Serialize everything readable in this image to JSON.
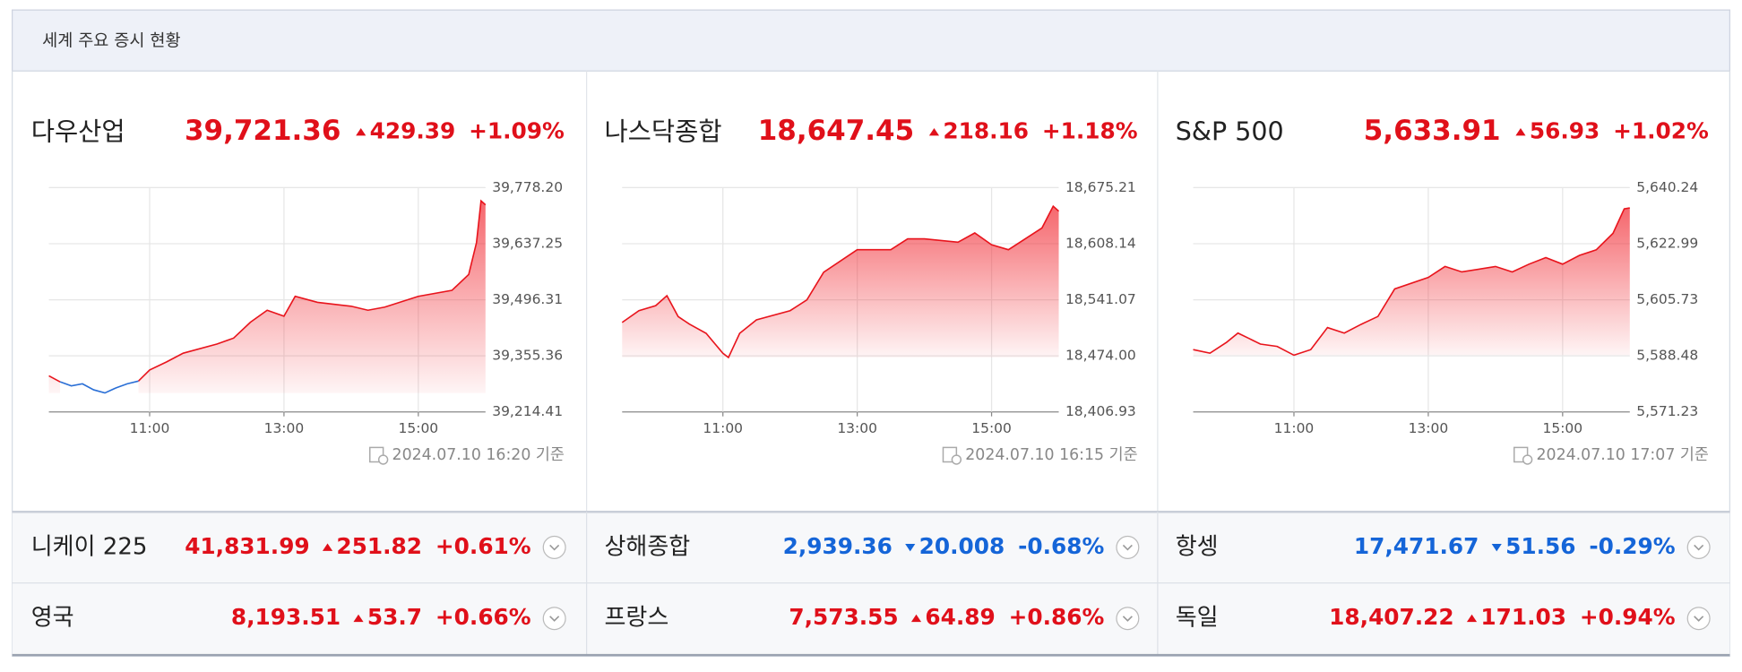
{
  "header": {
    "title": "세계 주요 증시 현황"
  },
  "panels": [
    {
      "name": "다우산업",
      "price": "39,721.36",
      "change": "429.39",
      "change_pct": "+1.09%",
      "direction": "up",
      "timestamp": "2024.07.10 16:20 기준",
      "chart": {
        "type": "line",
        "x": [
          "09:30",
          "09:40",
          "09:50",
          "10:00",
          "10:10",
          "10:20",
          "10:30",
          "10:40",
          "10:50",
          "11:00",
          "11:15",
          "11:30",
          "12:00",
          "12:15",
          "12:30",
          "12:45",
          "13:00",
          "13:10",
          "13:30",
          "14:00",
          "14:15",
          "14:30",
          "15:00",
          "15:30",
          "15:45",
          "15:52",
          "15:56",
          "16:00"
        ],
        "series": [
          {
            "color": "#e8141c",
            "values": [
              39305,
              39290,
              null,
              null,
              null,
              null,
              null,
              null,
              39292,
              39320,
              39340,
              39362,
              39385,
              39400,
              39440,
              39470,
              39455,
              39505,
              39490,
              39480,
              39470,
              39478,
              39505,
              39520,
              39560,
              39640,
              39745,
              39735
            ]
          },
          {
            "color": "#2a6fd6",
            "values": [
              null,
              39290,
              39280,
              39285,
              39270,
              39262,
              39275,
              39285,
              39292,
              null,
              null,
              null,
              null,
              null,
              null,
              null,
              null,
              null,
              null,
              null,
              null,
              null,
              null,
              null,
              null,
              null,
              null,
              null
            ]
          }
        ],
        "xlim": [
          "09:30",
          "16:00"
        ],
        "xticks": [
          "11:00",
          "13:00",
          "15:00"
        ],
        "ylim": [
          39214.41,
          39778.2
        ],
        "yticks": [
          {
            "value": 39214.41,
            "label": "39,214.41"
          },
          {
            "value": 39355.36,
            "label": "39,355.36"
          },
          {
            "value": 39496.31,
            "label": "39,496.31"
          },
          {
            "value": 39637.25,
            "label": "39,637.25"
          },
          {
            "value": 39778.2,
            "label": "39,778.20"
          }
        ],
        "grid": true
      }
    },
    {
      "name": "나스닥종합",
      "price": "18,647.45",
      "change": "218.16",
      "change_pct": "+1.18%",
      "direction": "up",
      "timestamp": "2024.07.10 16:15 기준",
      "chart": {
        "type": "line",
        "x": [
          "09:30",
          "09:45",
          "10:00",
          "10:10",
          "10:20",
          "10:30",
          "10:45",
          "11:00",
          "11:05",
          "11:15",
          "11:30",
          "12:00",
          "12:15",
          "12:30",
          "13:00",
          "13:30",
          "13:45",
          "14:00",
          "14:30",
          "14:45",
          "15:00",
          "15:15",
          "15:30",
          "15:45",
          "15:55",
          "16:00"
        ],
        "series": [
          {
            "color": "#e8141c",
            "values": [
              18514,
              18528,
              18534,
              18546,
              18521,
              18512,
              18501,
              18477,
              18472,
              18501,
              18517,
              18528,
              18541,
              18574,
              18601,
              18601,
              18614,
              18614,
              18610,
              18621,
              18607,
              18601,
              18614,
              18627,
              18653,
              18647
            ]
          }
        ],
        "xlim": [
          "09:30",
          "16:00"
        ],
        "xticks": [
          "11:00",
          "13:00",
          "15:00"
        ],
        "ylim": [
          18406.93,
          18675.21
        ],
        "yticks": [
          {
            "value": 18406.93,
            "label": "18,406.93"
          },
          {
            "value": 18474,
            "label": "18,474.00"
          },
          {
            "value": 18541.07,
            "label": "18,541.07"
          },
          {
            "value": 18608.14,
            "label": "18,608.14"
          },
          {
            "value": 18675.21,
            "label": "18,675.21"
          }
        ],
        "grid": true
      }
    },
    {
      "name": "S&P 500",
      "price": "5,633.91",
      "change": "56.93",
      "change_pct": "+1.02%",
      "direction": "up",
      "timestamp": "2024.07.10 17:07 기준",
      "chart": {
        "type": "line",
        "x": [
          "09:30",
          "09:45",
          "10:00",
          "10:10",
          "10:20",
          "10:30",
          "10:45",
          "11:00",
          "11:15",
          "11:30",
          "11:45",
          "12:00",
          "12:15",
          "12:30",
          "13:00",
          "13:15",
          "13:30",
          "14:00",
          "14:15",
          "14:30",
          "14:45",
          "15:00",
          "15:15",
          "15:30",
          "15:45",
          "15:55",
          "16:00"
        ],
        "series": [
          {
            "color": "#e8141c",
            "values": [
              5590.4,
              5589.3,
              5592.7,
              5595.5,
              5593.8,
              5592.1,
              5591.4,
              5588.7,
              5590.4,
              5597.2,
              5595.5,
              5598.2,
              5600.6,
              5609.1,
              5612.6,
              5616,
              5614.3,
              5616,
              5614.3,
              5616.7,
              5618.7,
              5616.7,
              5619.4,
              5621.1,
              5626.2,
              5633.7,
              5634
            ]
          }
        ],
        "xlim": [
          "09:30",
          "16:00"
        ],
        "xticks": [
          "11:00",
          "13:00",
          "15:00"
        ],
        "ylim": [
          5571.23,
          5640.24
        ],
        "yticks": [
          {
            "value": 5571.23,
            "label": "5,571.23"
          },
          {
            "value": 5588.48,
            "label": "5,588.48"
          },
          {
            "value": 5605.73,
            "label": "5,605.73"
          },
          {
            "value": 5622.99,
            "label": "5,622.99"
          },
          {
            "value": 5640.24,
            "label": "5,640.24"
          }
        ],
        "grid": true
      }
    }
  ],
  "rows": [
    [
      {
        "name": "니케이 225",
        "price": "41,831.99",
        "change": "251.82",
        "change_pct": "+0.61%",
        "direction": "up"
      },
      {
        "name": "상해종합",
        "price": "2,939.36",
        "change": "20.008",
        "change_pct": "-0.68%",
        "direction": "down"
      },
      {
        "name": "항셍",
        "price": "17,471.67",
        "change": "51.56",
        "change_pct": "-0.29%",
        "direction": "down"
      }
    ],
    [
      {
        "name": "영국",
        "price": "8,193.51",
        "change": "53.7",
        "change_pct": "+0.66%",
        "direction": "up"
      },
      {
        "name": "프랑스",
        "price": "7,573.55",
        "change": "64.89",
        "change_pct": "+0.86%",
        "direction": "up"
      },
      {
        "name": "독일",
        "price": "18,407.22",
        "change": "171.03",
        "change_pct": "+0.94%",
        "direction": "up"
      }
    ]
  ]
}
